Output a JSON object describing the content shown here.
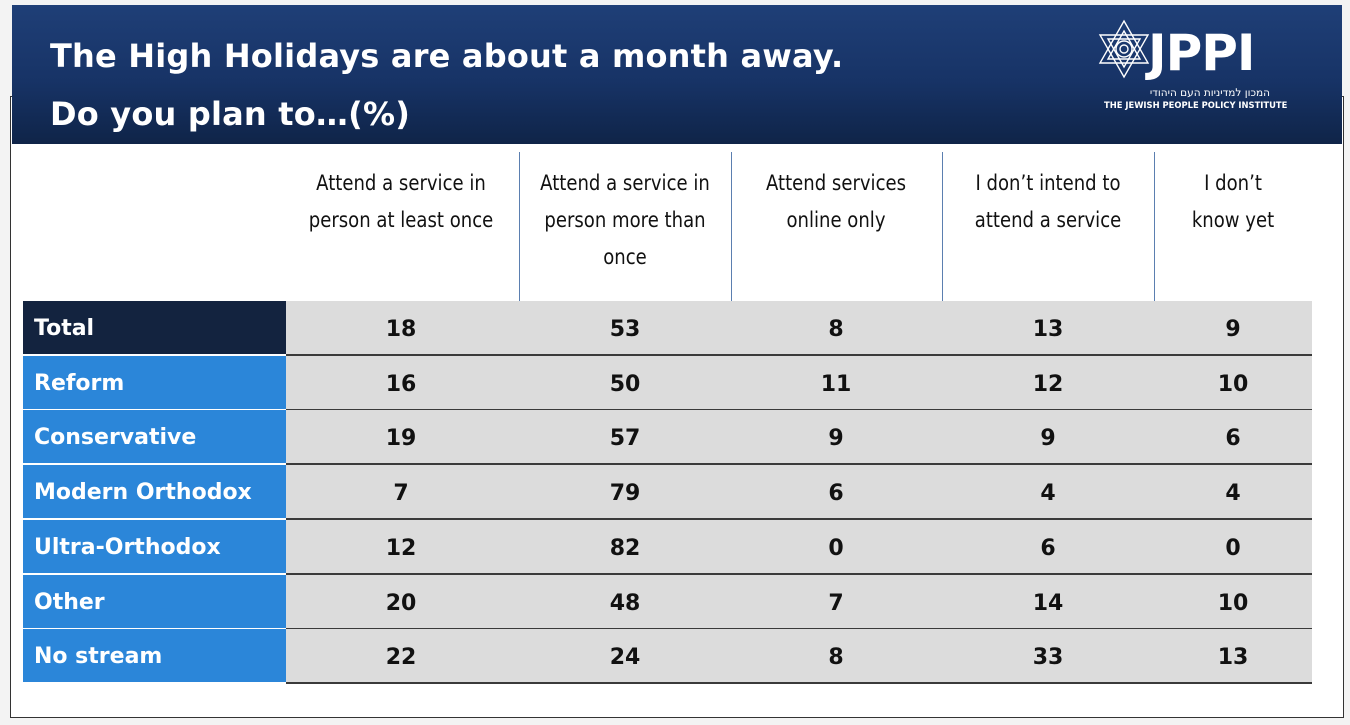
{
  "title": {
    "line1": "The High Holidays are about a month away.",
    "line2": "Do you plan to…(%)"
  },
  "logo": {
    "wordmark": "JPPI",
    "hebrew": "המכון למדיניות העם היהודי",
    "english": "THE JEWISH PEOPLE POLICY INSTITUTE"
  },
  "colors": {
    "header_bg": "#173366",
    "total_row_label": "#13233f",
    "stream_row_label": "#2b86d9",
    "cell_bg": "#dcdcdc"
  },
  "chart_data": {
    "type": "table",
    "columns": [
      "Attend a service in person at least once",
      "Attend a service in person more than once",
      "Attend services online only",
      "I don’t intend to attend a service",
      "I don’t know yet"
    ],
    "column_lines": [
      [
        "Attend a service in",
        "person at least once"
      ],
      [
        "Attend a service in",
        "person more than",
        "once"
      ],
      [
        "Attend services",
        "online only"
      ],
      [
        "I don’t intend to",
        "attend a service"
      ],
      [
        "I don’t",
        "know yet"
      ]
    ],
    "rows": [
      {
        "label": "Total",
        "values": [
          18,
          53,
          8,
          13,
          9
        ]
      },
      {
        "label": "Reform",
        "values": [
          16,
          50,
          11,
          12,
          10
        ]
      },
      {
        "label": "Conservative",
        "values": [
          19,
          57,
          9,
          9,
          6
        ]
      },
      {
        "label": "Modern Orthodox",
        "values": [
          7,
          79,
          6,
          4,
          4
        ]
      },
      {
        "label": "Ultra-Orthodox",
        "values": [
          12,
          82,
          0,
          6,
          0
        ]
      },
      {
        "label": "Other",
        "values": [
          20,
          48,
          7,
          14,
          10
        ]
      },
      {
        "label": "No stream",
        "values": [
          22,
          24,
          8,
          33,
          13
        ]
      }
    ]
  }
}
